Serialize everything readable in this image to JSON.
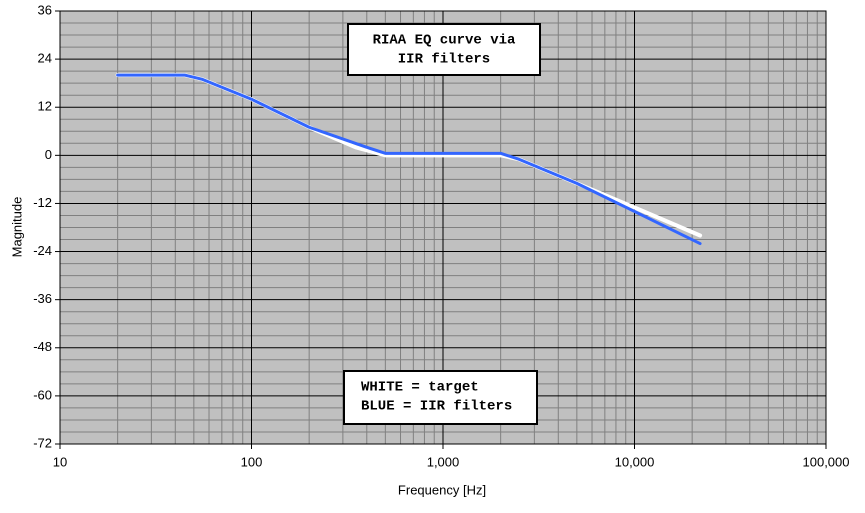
{
  "chart_data": {
    "type": "line",
    "x_label": "Frequency [Hz]",
    "y_label": "Magnitude",
    "xscale": "log",
    "xlim": [
      10,
      100000
    ],
    "xticks": [
      10,
      100,
      {
        "value": 1000,
        "label": "1,000"
      },
      {
        "value": 10000,
        "label": "10,000"
      },
      {
        "value": 100000,
        "label": "100,000"
      }
    ],
    "ylim": [
      -72,
      36
    ],
    "yticks": [
      -72,
      -60,
      -48,
      -36,
      -24,
      -12,
      0,
      12,
      24,
      36
    ],
    "grid": true,
    "series": [
      {
        "name": "target",
        "color": "#ffffff",
        "x": [
          20,
          45,
          55,
          100,
          200,
          350,
          500,
          2000,
          2500,
          5000,
          10000,
          22000
        ],
        "values": [
          20,
          20,
          19,
          14,
          7,
          2,
          0,
          0,
          -1,
          -7,
          -13,
          -20
        ]
      },
      {
        "name": "IIR filters",
        "color": "#3366ff",
        "x": [
          20,
          45,
          55,
          100,
          200,
          400,
          500,
          2000,
          2500,
          5000,
          10000,
          22000
        ],
        "values": [
          20,
          20,
          19,
          14,
          7,
          2,
          0.5,
          0.5,
          -1,
          -7,
          -14,
          -22
        ]
      }
    ],
    "annotations": [
      {
        "lines": [
          "RIAA EQ curve via",
          "IIR filters"
        ]
      },
      {
        "lines": [
          "WHITE = target",
          "BLUE = IIR filters"
        ]
      }
    ]
  }
}
